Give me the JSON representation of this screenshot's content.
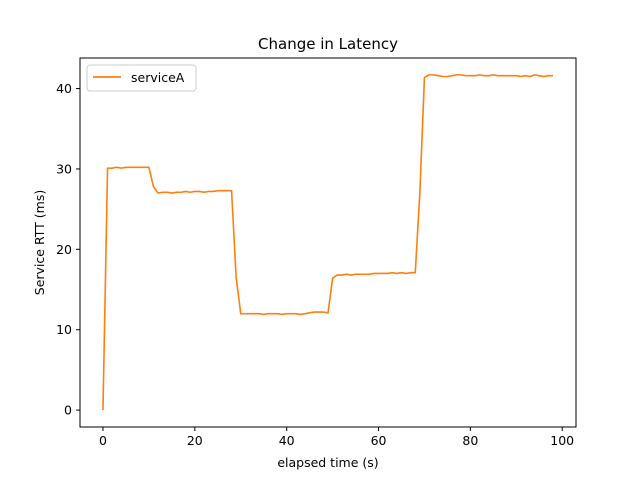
{
  "chart_data": {
    "type": "line",
    "title": "Change in Latency",
    "xlabel": "elapsed time (s)",
    "ylabel": "Service RTT (ms)",
    "xlim": [
      -5,
      103
    ],
    "ylim": [
      -2.1,
      43.8
    ],
    "xticks": [
      0,
      20,
      40,
      60,
      80,
      100
    ],
    "yticks": [
      0,
      10,
      20,
      30,
      40
    ],
    "grid": false,
    "legend_position": "upper-left",
    "series": [
      {
        "name": "serviceA",
        "color": "#ff7f0e",
        "x": [
          0,
          1,
          2,
          3,
          4,
          5,
          6,
          7,
          8,
          9,
          10,
          11,
          12,
          13,
          14,
          15,
          16,
          17,
          18,
          19,
          20,
          21,
          22,
          23,
          24,
          25,
          26,
          27,
          28,
          29,
          30,
          31,
          32,
          33,
          34,
          35,
          36,
          37,
          38,
          39,
          40,
          41,
          42,
          43,
          44,
          45,
          46,
          47,
          48,
          49,
          50,
          51,
          52,
          53,
          54,
          55,
          56,
          57,
          58,
          59,
          60,
          61,
          62,
          63,
          64,
          65,
          66,
          67,
          68,
          69,
          70,
          71,
          72,
          73,
          74,
          75,
          76,
          77,
          78,
          79,
          80,
          81,
          82,
          83,
          84,
          85,
          86,
          87,
          88,
          89,
          90,
          91,
          92,
          93,
          94,
          95,
          96,
          97,
          98
        ],
        "y": [
          0,
          30.1,
          30.1,
          30.2,
          30.1,
          30.2,
          30.2,
          30.2,
          30.2,
          30.2,
          30.2,
          27.8,
          27.0,
          27.1,
          27.1,
          27.0,
          27.1,
          27.1,
          27.2,
          27.1,
          27.2,
          27.2,
          27.1,
          27.2,
          27.2,
          27.3,
          27.3,
          27.3,
          27.3,
          16.5,
          12.0,
          12.0,
          12.0,
          12.0,
          12.0,
          11.9,
          12.0,
          12.0,
          12.0,
          11.9,
          12.0,
          12.0,
          12.0,
          11.9,
          12.0,
          12.1,
          12.2,
          12.2,
          12.2,
          12.1,
          16.4,
          16.8,
          16.8,
          16.9,
          16.8,
          16.9,
          16.9,
          16.9,
          16.9,
          17.0,
          17.0,
          17.0,
          17.0,
          17.1,
          17.0,
          17.1,
          17.0,
          17.1,
          17.1,
          27.0,
          41.4,
          41.7,
          41.7,
          41.6,
          41.5,
          41.5,
          41.6,
          41.7,
          41.7,
          41.6,
          41.6,
          41.6,
          41.7,
          41.6,
          41.6,
          41.7,
          41.6,
          41.6,
          41.6,
          41.6,
          41.6,
          41.5,
          41.6,
          41.5,
          41.7,
          41.6,
          41.5,
          41.6,
          41.6
        ]
      }
    ]
  }
}
